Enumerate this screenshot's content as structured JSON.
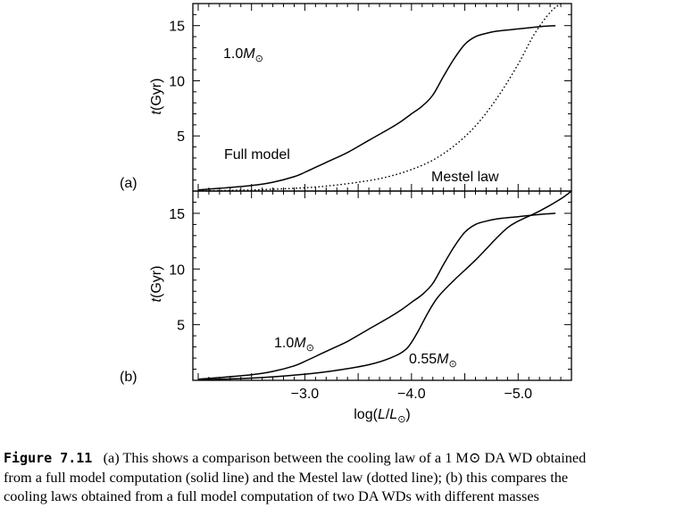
{
  "chart_data": [
    {
      "panel": "(a)",
      "type": "line",
      "xlabel": "log(L/L⊙)",
      "ylabel": "t(Gyr)",
      "xlim": [
        -1.95,
        -5.5
      ],
      "ylim": [
        0,
        17
      ],
      "yticks": [
        "5",
        "10",
        "15"
      ],
      "annotations": [
        {
          "text": "1.0M",
          "subscript": "⊙",
          "x": -2.3,
          "y": 12.5
        },
        {
          "text": "Full model",
          "x": -2.3,
          "y": 3.2
        },
        {
          "text": "Mestel law",
          "x": -4.2,
          "y": 1.2
        }
      ],
      "series": [
        {
          "label": "Full model",
          "style": "solid",
          "x": [
            -2.0,
            -2.2,
            -2.5,
            -2.7,
            -2.9,
            -3.0,
            -3.2,
            -3.4,
            -3.6,
            -3.8,
            -3.9,
            -4.0,
            -4.1,
            -4.2,
            -4.3,
            -4.4,
            -4.5,
            -4.6,
            -4.7,
            -4.8,
            -5.0,
            -5.2,
            -5.35
          ],
          "y": [
            0.1,
            0.25,
            0.5,
            0.8,
            1.3,
            1.7,
            2.6,
            3.5,
            4.6,
            5.7,
            6.3,
            7.0,
            7.7,
            8.7,
            10.4,
            12.0,
            13.3,
            14.0,
            14.3,
            14.5,
            14.7,
            14.9,
            15.0
          ]
        },
        {
          "label": "Mestel law",
          "style": "dotted",
          "x": [
            -2.0,
            -2.5,
            -3.0,
            -3.3,
            -3.6,
            -3.8,
            -4.0,
            -4.2,
            -4.4,
            -4.6,
            -4.8,
            -5.0,
            -5.15,
            -5.3,
            -5.4
          ],
          "y": [
            0.02,
            0.1,
            0.3,
            0.55,
            0.95,
            1.35,
            1.95,
            2.8,
            4.1,
            5.9,
            8.4,
            11.5,
            14.2,
            16.2,
            17.0
          ]
        }
      ]
    },
    {
      "panel": "(b)",
      "type": "line",
      "xlabel": "log(L/L⊙)",
      "ylabel": "t(Gyr)",
      "xlim": [
        -1.95,
        -5.5
      ],
      "ylim": [
        0,
        17
      ],
      "xticks": [
        "−3.0",
        "−4.0",
        "−5.0"
      ],
      "xtick_values": [
        -3.0,
        -4.0,
        -5.0
      ],
      "yticks": [
        "5",
        "10",
        "15"
      ],
      "annotations": [
        {
          "text": "1.0M",
          "subscript": "⊙",
          "x": -3.2,
          "y": 3.2
        },
        {
          "text": "0.55M",
          "subscript": "⊙",
          "x": -4.3,
          "y": 1.5
        }
      ],
      "series": [
        {
          "label": "1.0M⊙",
          "style": "solid",
          "x": [
            -2.0,
            -2.2,
            -2.5,
            -2.7,
            -2.9,
            -3.0,
            -3.2,
            -3.4,
            -3.6,
            -3.8,
            -3.9,
            -4.0,
            -4.1,
            -4.2,
            -4.3,
            -4.4,
            -4.5,
            -4.6,
            -4.7,
            -4.8,
            -5.0,
            -5.2,
            -5.35
          ],
          "y": [
            0.1,
            0.25,
            0.5,
            0.8,
            1.3,
            1.7,
            2.6,
            3.5,
            4.6,
            5.7,
            6.3,
            7.0,
            7.7,
            8.7,
            10.4,
            12.0,
            13.3,
            14.0,
            14.3,
            14.5,
            14.7,
            14.9,
            15.0
          ]
        },
        {
          "label": "0.55M⊙",
          "style": "solid",
          "x": [
            -2.0,
            -2.5,
            -3.0,
            -3.3,
            -3.6,
            -3.8,
            -3.95,
            -4.05,
            -4.15,
            -4.25,
            -4.4,
            -4.6,
            -4.8,
            -4.9,
            -5.0,
            -5.2,
            -5.4,
            -5.5
          ],
          "y": [
            0.05,
            0.2,
            0.55,
            0.9,
            1.4,
            2.0,
            2.8,
            4.2,
            6.0,
            7.5,
            9.0,
            10.8,
            12.8,
            13.7,
            14.3,
            15.2,
            16.3,
            17.0
          ]
        }
      ]
    }
  ],
  "caption": {
    "label": "Figure 7.11",
    "lines": [
      "(a) This shows a comparison between the cooling law of a 1 M⊙ DA WD obtained",
      "from a full model computation (solid line) and the Mestel law (dotted line); (b) this compares the",
      "cooling laws obtained from a full model computation of two DA WDs with different masses"
    ]
  }
}
